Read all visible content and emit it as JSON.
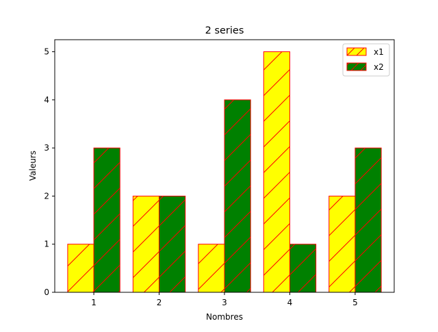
{
  "chart_data": {
    "type": "bar",
    "title": "2 series",
    "xlabel": "Nombres",
    "ylabel": "Valeurs",
    "categories": [
      "1",
      "2",
      "3",
      "4",
      "5"
    ],
    "ylim": [
      0,
      5.25
    ],
    "yticks": [
      0,
      1,
      2,
      3,
      4,
      5
    ],
    "grid": false,
    "legend_position": "top-right",
    "series": [
      {
        "name": "x1",
        "values": [
          1,
          2,
          1,
          5,
          2
        ],
        "color": "#ffff00",
        "edge_color": "#ff0000",
        "hatch": "/"
      },
      {
        "name": "x2",
        "values": [
          3,
          2,
          4,
          1,
          3
        ],
        "color": "#008000",
        "edge_color": "#ff0000",
        "hatch": "/"
      }
    ]
  }
}
